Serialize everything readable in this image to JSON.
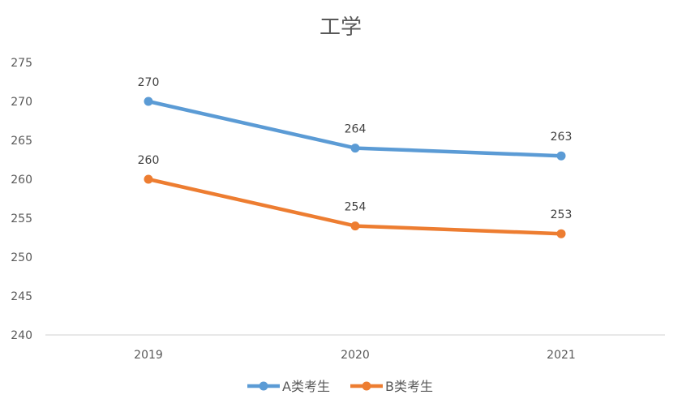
{
  "chart_data": {
    "type": "line",
    "title": "工学",
    "xlabel": "",
    "ylabel": "",
    "categories": [
      "2019",
      "2020",
      "2021"
    ],
    "ylim": [
      240,
      275
    ],
    "yticks": [
      240,
      245,
      250,
      255,
      260,
      265,
      270,
      275
    ],
    "grid": false,
    "legend_position": "bottom",
    "series": [
      {
        "name": "A类考生",
        "values": [
          270,
          264,
          263
        ],
        "color": "#5B9BD5"
      },
      {
        "name": "B类考生",
        "values": [
          260,
          254,
          253
        ],
        "color": "#ED7D31"
      }
    ]
  }
}
